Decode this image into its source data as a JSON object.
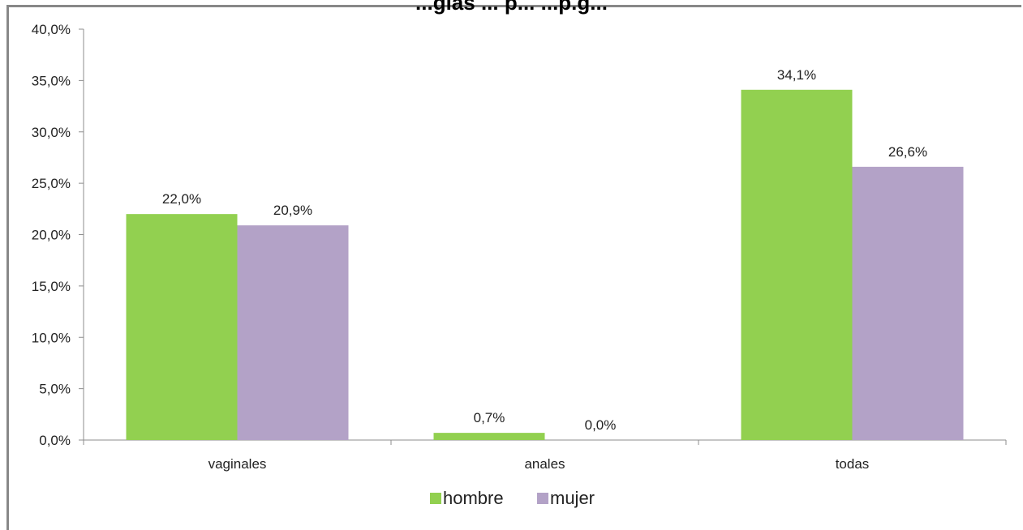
{
  "chart_data": {
    "type": "bar",
    "title": "...gias ... p... ...p.g...",
    "categories": [
      "vaginales",
      "anales",
      "todas"
    ],
    "series": [
      {
        "name": "hombre",
        "values": [
          22.0,
          0.7,
          34.1
        ],
        "labels": [
          "22,0%",
          "0,7%",
          "34,1%"
        ],
        "color": "#92d050"
      },
      {
        "name": "mujer",
        "values": [
          20.9,
          0.0,
          26.6
        ],
        "labels": [
          "20,9%",
          "0,0%",
          "26,6%"
        ],
        "color": "#b3a2c7"
      }
    ],
    "ylim": [
      0,
      40
    ],
    "yticks": [
      "0,0%",
      "5,0%",
      "10,0%",
      "15,0%",
      "20,0%",
      "25,0%",
      "30,0%",
      "35,0%",
      "40,0%"
    ],
    "ytick_values": [
      0,
      5,
      10,
      15,
      20,
      25,
      30,
      35,
      40
    ],
    "xlabel": "",
    "ylabel": "",
    "grid": false,
    "legend": "bottom"
  }
}
